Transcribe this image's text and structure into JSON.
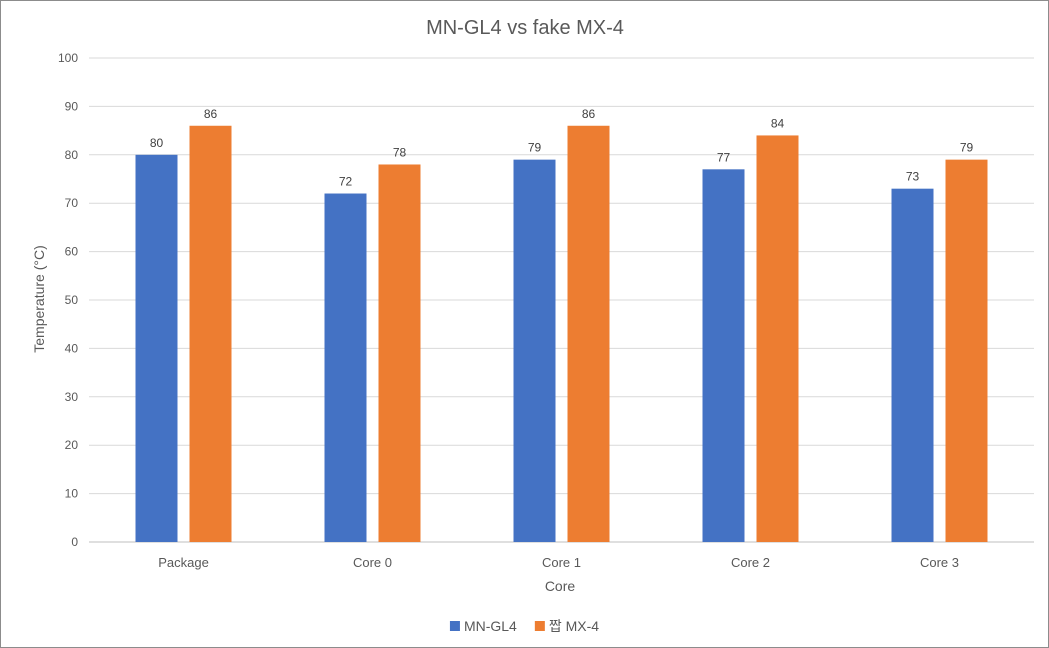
{
  "chart_data": {
    "type": "bar",
    "title": "MN-GL4 vs fake MX-4",
    "xlabel": "Core",
    "ylabel": "Temperature (°C)",
    "categories": [
      "Package",
      "Core 0",
      "Core 1",
      "Core 2",
      "Core 3"
    ],
    "series": [
      {
        "name": "MN-GL4",
        "values": [
          80,
          72,
          79,
          77,
          73
        ],
        "color": "#4472c4"
      },
      {
        "name": "짭 MX-4",
        "values": [
          86,
          78,
          86,
          84,
          79
        ],
        "color": "#ed7d31"
      }
    ],
    "ylim": [
      0,
      100
    ],
    "yticks": [
      0,
      10,
      20,
      30,
      40,
      50,
      60,
      70,
      80,
      90,
      100
    ],
    "grid": true,
    "legend_position": "bottom",
    "data_labels": true
  }
}
